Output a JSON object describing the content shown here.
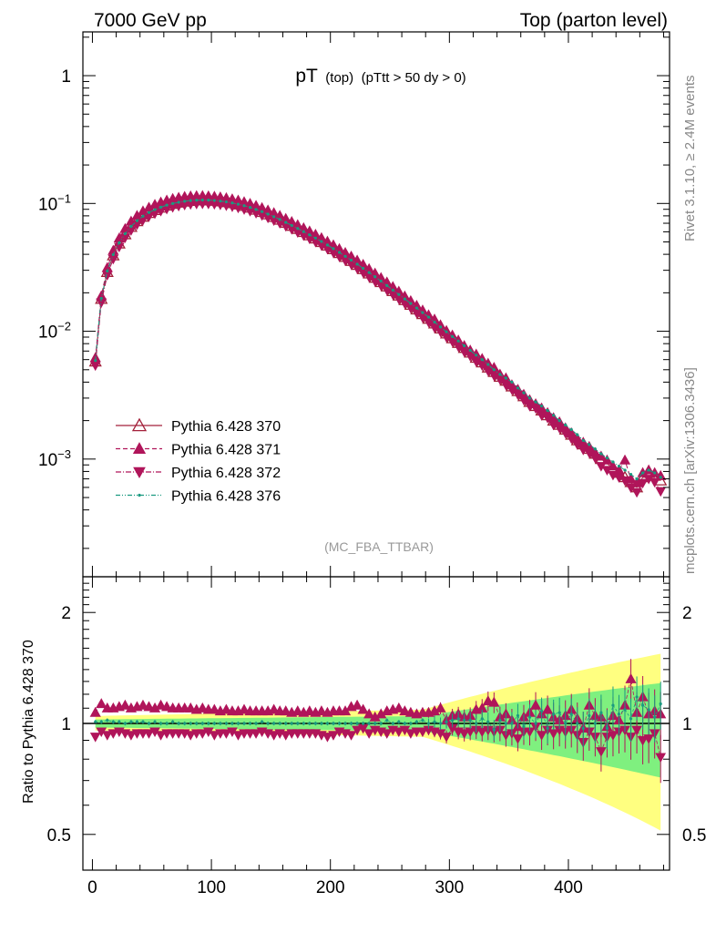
{
  "header": {
    "left": "7000 GeV pp",
    "right": "Top (parton level)"
  },
  "side_labels": {
    "upper": "Rivet 3.1.10, ≥ 2.4M events",
    "lower": "mcplots.cern.ch [arXiv:1306.3436]"
  },
  "chart_data": [
    {
      "type": "line",
      "panel": "main",
      "title_main": "pT",
      "title_sub1": "(top)",
      "title_sub2": "(pTtt > 50 dy > 0)",
      "watermark": "(MC_FBA_TTBAR)",
      "yscale": "log",
      "xlim": [
        -8,
        485
      ],
      "ylim": [
        0.00012,
        2.2
      ],
      "x_ticks": [
        0,
        100,
        200,
        300,
        400
      ],
      "y_ticks": [
        {
          "value": 1,
          "label": "1",
          "exp": ""
        },
        {
          "value": 0.1,
          "label": "10",
          "exp": "−1"
        },
        {
          "value": 0.01,
          "label": "10",
          "exp": "−2"
        },
        {
          "value": 0.001,
          "label": "10",
          "exp": "−3"
        }
      ],
      "legend_position": "lower-left",
      "x": [
        2.5,
        7.5,
        12.5,
        17.5,
        22.5,
        27.5,
        32.5,
        37.5,
        42.5,
        47.5,
        52.5,
        57.5,
        62.5,
        67.5,
        72.5,
        77.5,
        82.5,
        87.5,
        92.5,
        97.5,
        102.5,
        107.5,
        112.5,
        117.5,
        122.5,
        127.5,
        132.5,
        137.5,
        142.5,
        147.5,
        152.5,
        157.5,
        162.5,
        167.5,
        172.5,
        177.5,
        182.5,
        187.5,
        192.5,
        197.5,
        202.5,
        207.5,
        212.5,
        217.5,
        222.5,
        227.5,
        232.5,
        237.5,
        242.5,
        247.5,
        252.5,
        257.5,
        262.5,
        267.5,
        272.5,
        277.5,
        282.5,
        287.5,
        292.5,
        297.5,
        302.5,
        307.5,
        312.5,
        317.5,
        322.5,
        327.5,
        332.5,
        337.5,
        342.5,
        347.5,
        352.5,
        357.5,
        362.5,
        367.5,
        372.5,
        377.5,
        382.5,
        387.5,
        392.5,
        397.5,
        402.5,
        407.5,
        412.5,
        417.5,
        422.5,
        427.5,
        432.5,
        437.5,
        442.5,
        447.5,
        452.5,
        457.5,
        462.5,
        467.5,
        472.5,
        477.5
      ],
      "series": [
        {
          "name": "Pythia 6.428 370",
          "color": "#a3203a",
          "marker": "triangle-up-open",
          "line": "solid",
          "values": [
            0.0058,
            0.0179,
            0.0291,
            0.0392,
            0.0486,
            0.0574,
            0.0655,
            0.0726,
            0.0787,
            0.0841,
            0.0887,
            0.0927,
            0.0962,
            0.0992,
            0.1015,
            0.1033,
            0.1046,
            0.1054,
            0.1058,
            0.1056,
            0.1049,
            0.1038,
            0.1023,
            0.1004,
            0.0982,
            0.0956,
            0.0926,
            0.0893,
            0.0858,
            0.0821,
            0.0783,
            0.0745,
            0.0706,
            0.0668,
            0.0632,
            0.0597,
            0.0563,
            0.0531,
            0.0499,
            0.0468,
            0.0438,
            0.0409,
            0.0381,
            0.0355,
            0.033,
            0.0306,
            0.0283,
            0.0262,
            0.0242,
            0.0224,
            0.0206,
            0.019,
            0.0175,
            0.0161,
            0.0148,
            0.0136,
            0.0125,
            0.0115,
            0.0105,
            0.0096,
            0.0088,
            0.0081,
            0.0074,
            0.0068,
            0.0062,
            0.0057,
            0.0052,
            0.0048,
            0.0044,
            0.0041,
            0.0037,
            0.0034,
            0.0031,
            0.0028,
            0.0026,
            0.0024,
            0.0022,
            0.002,
            0.00185,
            0.0017,
            0.00155,
            0.0014,
            0.0013,
            0.0012,
            0.0011,
            0.001,
            0.00092,
            0.00085,
            0.00078,
            0.00072,
            0.00066,
            0.0006,
            0.00072,
            0.00078,
            0.00074,
            0.00068
          ]
        },
        {
          "name": "Pythia 6.428 371",
          "color": "#b0155a",
          "marker": "triangle-up-filled",
          "line": "dashed",
          "values": [
            0.0062,
            0.0189,
            0.0314,
            0.0428,
            0.0535,
            0.0634,
            0.0724,
            0.0803,
            0.0871,
            0.093,
            0.098,
            0.1023,
            0.1059,
            0.1089,
            0.1113,
            0.113,
            0.1141,
            0.1147,
            0.1148,
            0.1143,
            0.1134,
            0.1121,
            0.1104,
            0.1083,
            0.1058,
            0.1029,
            0.0997,
            0.0962,
            0.0925,
            0.0885,
            0.0845,
            0.0803,
            0.0761,
            0.072,
            0.068,
            0.0643,
            0.0607,
            0.0572,
            0.0538,
            0.0505,
            0.0473,
            0.0442,
            0.0412,
            0.0386,
            0.0359,
            0.0333,
            0.0308,
            0.0284,
            0.0262,
            0.0242,
            0.0223,
            0.0205,
            0.0188,
            0.0173,
            0.0159,
            0.0146,
            0.0134,
            0.0124,
            0.0112,
            0.0101,
            0.0093,
            0.0085,
            0.0077,
            0.0071,
            0.0066,
            0.0061,
            0.0056,
            0.0052,
            0.0046,
            0.0043,
            0.0038,
            0.0035,
            0.0032,
            0.0029,
            0.0027,
            0.0025,
            0.0023,
            0.0021,
            0.00195,
            0.00175,
            0.0016,
            0.00145,
            0.00135,
            0.00125,
            0.00112,
            0.00105,
            0.00098,
            0.00088,
            0.00082,
            0.00098,
            0.0007,
            0.00065,
            0.00078,
            0.00082,
            0.00078,
            0.00074
          ]
        },
        {
          "name": "Pythia 6.428 372",
          "color": "#b0155a",
          "marker": "triangle-down-filled",
          "line": "dashdot",
          "values": [
            0.0054,
            0.0168,
            0.0275,
            0.0368,
            0.0457,
            0.054,
            0.0616,
            0.0683,
            0.0741,
            0.0791,
            0.0834,
            0.0872,
            0.0905,
            0.0933,
            0.0955,
            0.0972,
            0.0984,
            0.0992,
            0.0995,
            0.0993,
            0.0987,
            0.0976,
            0.0962,
            0.0944,
            0.0924,
            0.0899,
            0.0871,
            0.084,
            0.0807,
            0.0772,
            0.0736,
            0.07,
            0.0664,
            0.0628,
            0.0594,
            0.0561,
            0.053,
            0.05,
            0.0469,
            0.044,
            0.0412,
            0.0384,
            0.0358,
            0.0334,
            0.031,
            0.0288,
            0.0266,
            0.0246,
            0.0228,
            0.021,
            0.0194,
            0.0179,
            0.0165,
            0.0152,
            0.0139,
            0.0128,
            0.0118,
            0.0107,
            0.0099,
            0.009,
            0.0083,
            0.0076,
            0.0069,
            0.0064,
            0.0058,
            0.0054,
            0.0049,
            0.0045,
            0.0042,
            0.0038,
            0.0035,
            0.0032,
            0.0029,
            0.0026,
            0.0025,
            0.0022,
            0.0021,
            0.00185,
            0.00175,
            0.0016,
            0.00145,
            0.0013,
            0.00118,
            0.00112,
            0.00102,
            0.00088,
            0.00082,
            0.00075,
            0.00072,
            0.00068,
            0.0006,
            0.00055,
            0.00065,
            0.0007,
            0.00066,
            0.00056
          ]
        },
        {
          "name": "Pythia 6.428 376",
          "color": "#1a9a80",
          "marker": "dot",
          "line": "dashdotdot",
          "values": [
            0.0059,
            0.0181,
            0.0296,
            0.0398,
            0.0492,
            0.058,
            0.0661,
            0.0733,
            0.0795,
            0.0849,
            0.0895,
            0.0935,
            0.097,
            0.0999,
            0.1022,
            0.104,
            0.1053,
            0.1061,
            0.1064,
            0.1062,
            0.1055,
            0.1044,
            0.1029,
            0.101,
            0.0987,
            0.0961,
            0.0931,
            0.0898,
            0.0863,
            0.0826,
            0.0788,
            0.075,
            0.0711,
            0.0673,
            0.0637,
            0.0602,
            0.0568,
            0.0536,
            0.0504,
            0.0473,
            0.0443,
            0.0414,
            0.0386,
            0.036,
            0.0335,
            0.0311,
            0.0288,
            0.0267,
            0.0247,
            0.0228,
            0.021,
            0.0194,
            0.0179,
            0.0165,
            0.0152,
            0.014,
            0.0129,
            0.0118,
            0.0108,
            0.0099,
            0.0091,
            0.0084,
            0.0077,
            0.0071,
            0.0065,
            0.006,
            0.0055,
            0.005,
            0.0046,
            0.0043,
            0.004,
            0.0036,
            0.0033,
            0.003,
            0.0028,
            0.0026,
            0.0024,
            0.0022,
            0.002,
            0.00185,
            0.0017,
            0.00155,
            0.0014,
            0.0013,
            0.0012,
            0.0011,
            0.00102,
            0.00095,
            0.00088,
            0.00082,
            0.00076,
            0.0007,
            0.00078,
            0.00082,
            0.00078,
            0.00072
          ]
        }
      ]
    },
    {
      "type": "line",
      "panel": "ratio",
      "ylabel": "Ratio to Pythia 6.428 370",
      "yscale": "log",
      "xlim": [
        -8,
        485
      ],
      "ylim": [
        0.4,
        2.5
      ],
      "x_ticks": [
        0,
        100,
        200,
        300,
        400
      ],
      "y_ticks": [
        {
          "value": 2,
          "label": "2"
        },
        {
          "value": 1,
          "label": "1"
        },
        {
          "value": 0.5,
          "label": "0.5"
        }
      ],
      "band": {
        "inner_color": "#7ff07f",
        "outer_color": "#ffff80"
      },
      "x": [
        2.5,
        7.5,
        12.5,
        17.5,
        22.5,
        27.5,
        32.5,
        37.5,
        42.5,
        47.5,
        52.5,
        57.5,
        62.5,
        67.5,
        72.5,
        77.5,
        82.5,
        87.5,
        92.5,
        97.5,
        102.5,
        107.5,
        112.5,
        117.5,
        122.5,
        127.5,
        132.5,
        137.5,
        142.5,
        147.5,
        152.5,
        157.5,
        162.5,
        167.5,
        172.5,
        177.5,
        182.5,
        187.5,
        192.5,
        197.5,
        202.5,
        207.5,
        212.5,
        217.5,
        222.5,
        227.5,
        232.5,
        237.5,
        242.5,
        247.5,
        252.5,
        257.5,
        262.5,
        267.5,
        272.5,
        277.5,
        282.5,
        287.5,
        292.5,
        297.5,
        302.5,
        307.5,
        312.5,
        317.5,
        322.5,
        327.5,
        332.5,
        337.5,
        342.5,
        347.5,
        352.5,
        357.5,
        362.5,
        367.5,
        372.5,
        377.5,
        382.5,
        387.5,
        392.5,
        397.5,
        402.5,
        407.5,
        412.5,
        417.5,
        422.5,
        427.5,
        432.5,
        437.5,
        442.5,
        447.5,
        452.5,
        457.5,
        462.5,
        467.5,
        472.5,
        477.5
      ],
      "series": [
        {
          "name": "Pythia 6.428 371",
          "color": "#b0155a",
          "marker": "triangle-up-filled",
          "values": [
            1.07,
            1.13,
            1.1,
            1.1,
            1.11,
            1.12,
            1.1,
            1.11,
            1.12,
            1.11,
            1.1,
            1.12,
            1.11,
            1.1,
            1.1,
            1.1,
            1.1,
            1.09,
            1.1,
            1.09,
            1.09,
            1.08,
            1.09,
            1.08,
            1.08,
            1.09,
            1.08,
            1.08,
            1.08,
            1.08,
            1.09,
            1.08,
            1.08,
            1.07,
            1.08,
            1.07,
            1.08,
            1.07,
            1.08,
            1.07,
            1.08,
            1.08,
            1.08,
            1.11,
            1.12,
            1.09,
            1.06,
            1.04,
            1.06,
            1.08,
            1.09,
            1.1,
            1.08,
            1.07,
            1.06,
            1.07,
            1.07,
            1.08,
            1.1,
            1.02,
            1.05,
            1.06,
            1.04,
            1.05,
            1.09,
            1.1,
            1.15,
            1.14,
            1.04,
            1.06,
            1.02,
            0.98,
            1.04,
            1.07,
            1.12,
            1.06,
            1.09,
            1.04,
            1.02,
            1.05,
            1.09,
            1.03,
            0.97,
            1.12,
            1.05,
            1.04,
            0.98,
            1.05,
            1.02,
            1.12,
            1.32,
            1.07,
            1.18,
            1.06,
            1.08,
            1.06
          ]
        },
        {
          "name": "Pythia 6.428 372",
          "color": "#b0155a",
          "marker": "triangle-down-filled",
          "values": [
            0.92,
            0.95,
            0.93,
            0.94,
            0.95,
            0.94,
            0.93,
            0.94,
            0.94,
            0.94,
            0.95,
            0.93,
            0.94,
            0.94,
            0.94,
            0.94,
            0.93,
            0.94,
            0.94,
            0.95,
            0.93,
            0.94,
            0.94,
            0.95,
            0.93,
            0.94,
            0.94,
            0.94,
            0.95,
            0.94,
            0.93,
            0.94,
            0.93,
            0.94,
            0.94,
            0.94,
            0.94,
            0.94,
            0.93,
            0.92,
            0.93,
            0.95,
            0.94,
            0.93,
            0.96,
            0.97,
            0.94,
            0.96,
            0.95,
            0.94,
            0.96,
            0.95,
            0.96,
            0.94,
            0.95,
            0.95,
            0.96,
            0.95,
            0.94,
            0.92,
            0.97,
            0.95,
            0.94,
            0.95,
            0.96,
            0.95,
            0.96,
            0.95,
            0.96,
            0.93,
            0.94,
            0.91,
            0.95,
            0.95,
            0.98,
            0.93,
            0.96,
            0.94,
            0.96,
            0.95,
            0.96,
            0.93,
            0.89,
            0.95,
            0.92,
            0.84,
            0.92,
            0.93,
            0.95,
            0.96,
            0.92,
            0.96,
            0.9,
            0.91,
            0.94,
            0.81
          ]
        },
        {
          "name": "Pythia 6.428 376",
          "color": "#1a9a80",
          "marker": "dot",
          "values": [
            1.01,
            1.01,
            1.02,
            1.01,
            1.01,
            1.0,
            1.01,
            1.01,
            1.01,
            1.0,
            1.01,
            1.0,
            1.0,
            1.01,
            1.0,
            1.0,
            1.0,
            1.0,
            1.0,
            1.0,
            1.0,
            1.0,
            1.0,
            1.0,
            1.0,
            1.0,
            1.0,
            1.0,
            1.01,
            1.0,
            1.0,
            1.0,
            1.0,
            1.0,
            1.0,
            1.0,
            1.0,
            1.0,
            1.0,
            1.0,
            1.0,
            1.0,
            1.0,
            1.0,
            1.0,
            1.0,
            1.0,
            1.0,
            1.0,
            1.02,
            1.0,
            1.01,
            1.0,
            1.0,
            1.01,
            1.02,
            1.0,
            1.01,
            1.0,
            1.01,
            1.02,
            1.03,
            1.02,
            1.02,
            1.0,
            1.03,
            1.01,
            0.96,
            1.02,
            1.0,
            1.0,
            1.05,
            0.98,
            1.04,
            1.0,
            1.08,
            0.97,
            1.06,
            1.07,
            1.0,
            1.06,
            1.0,
            0.97,
            1.05,
            1.0,
            1.07,
            0.97,
            1.12,
            1.06,
            1.09,
            1.03,
            1.18,
            1.12,
            1.09,
            1.04,
            1.13
          ]
        }
      ]
    }
  ]
}
